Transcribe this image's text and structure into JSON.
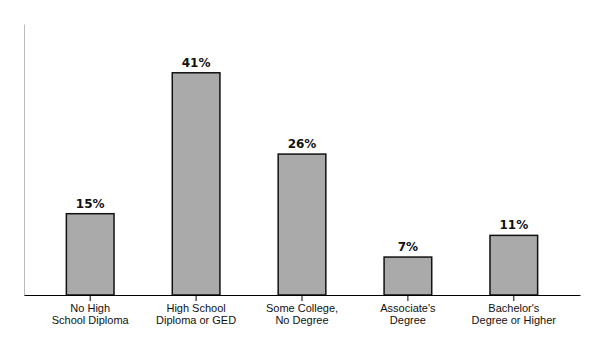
{
  "chart_data": {
    "type": "bar",
    "categories": [
      "No High\nSchool Diploma",
      "High School\nDiploma or GED",
      "Some College,\nNo Degree",
      "Associate's\nDegree",
      "Bachelor's\nDegree or Higher"
    ],
    "values": [
      15,
      41,
      26,
      7,
      11
    ],
    "value_labels": [
      "15%",
      "41%",
      "26%",
      "7%",
      "11%"
    ],
    "data_labels": true,
    "color": "#aaaaaa",
    "ylim": [
      0,
      50
    ],
    "tick_labels": "x"
  }
}
